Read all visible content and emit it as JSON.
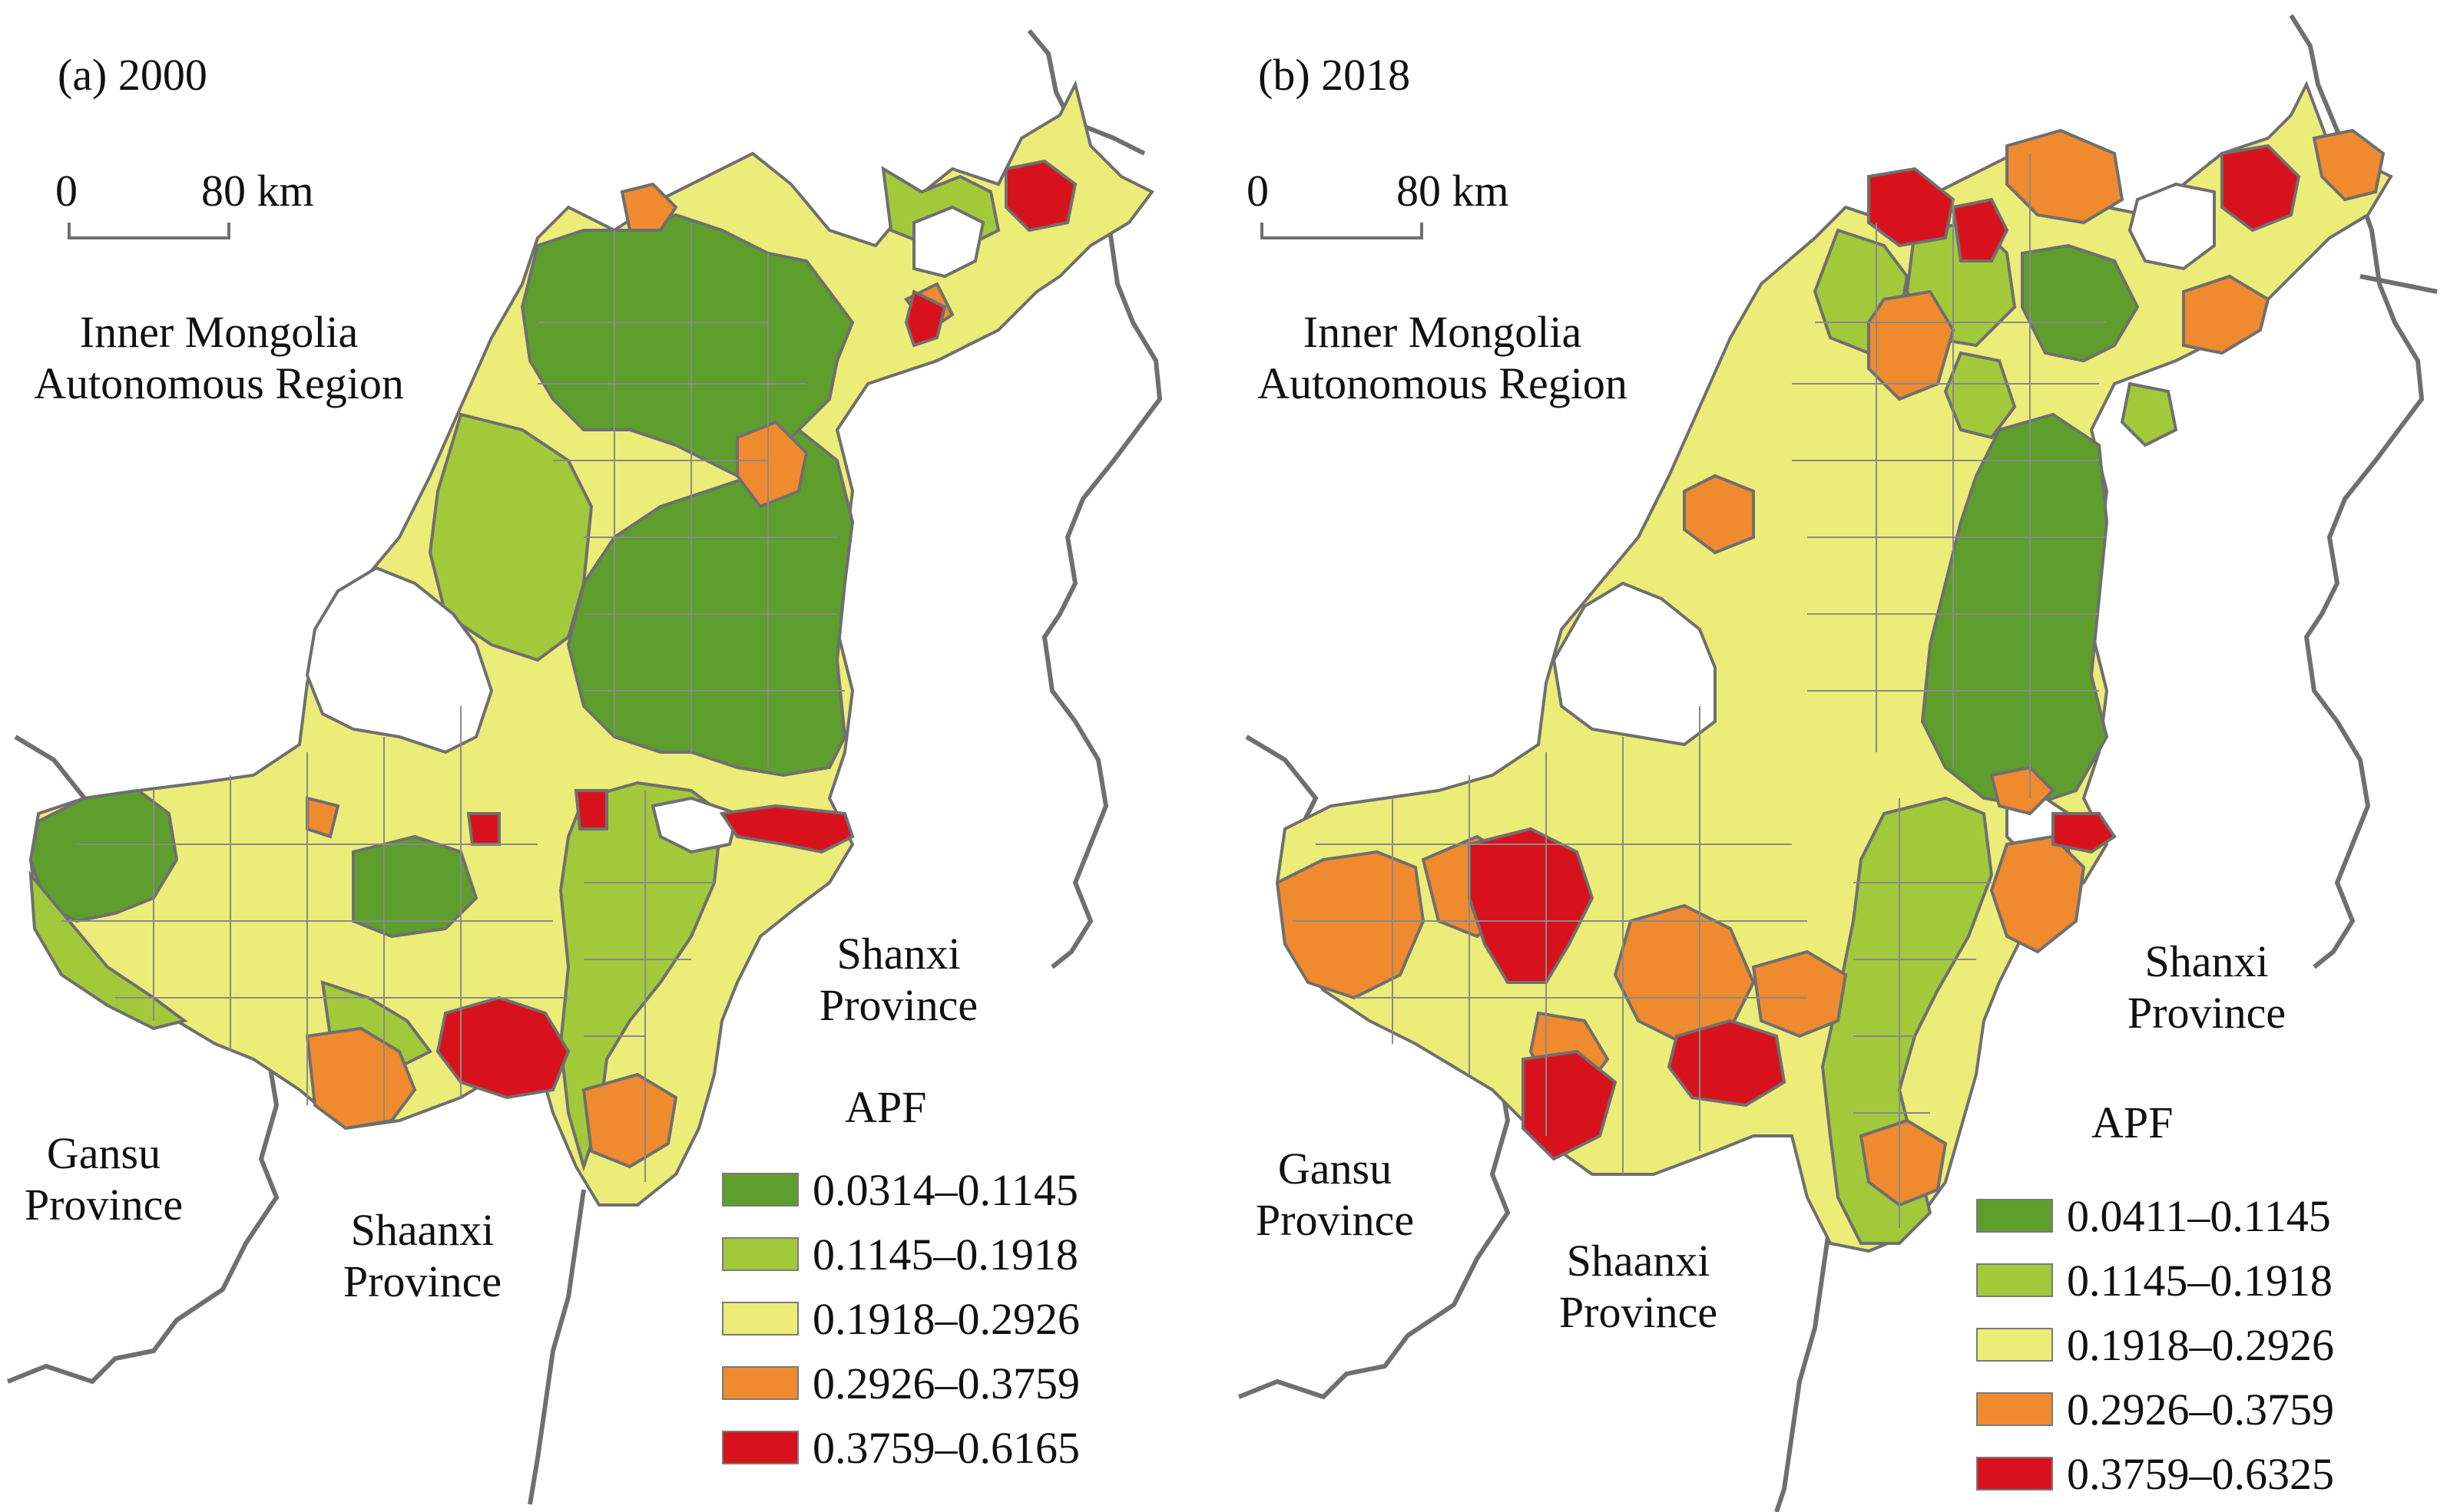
{
  "colors": {
    "dark_green": "#5e9e2c",
    "light_green": "#a2c93a",
    "yellow": "#ecec78",
    "orange": "#f08a2e",
    "red": "#d8121c",
    "nodata": "#ffffff",
    "border": "#6f6f6f"
  },
  "panels": [
    {
      "title": "(a) 2000",
      "scale": {
        "zero": "0",
        "length": "80 km"
      },
      "regions": {
        "inner_mongolia": [
          "Inner Mongolia",
          "Autonomous Region"
        ],
        "shanxi": [
          "Shanxi",
          "Province"
        ],
        "gansu": [
          "Gansu",
          "Province"
        ],
        "shaanxi": [
          "Shaanxi",
          "Province"
        ]
      },
      "legend": {
        "title": "APF",
        "items": [
          {
            "range": "0.0314–0.1145",
            "color": "#5e9e2c"
          },
          {
            "range": "0.1145–0.1918",
            "color": "#a2c93a"
          },
          {
            "range": "0.1918–0.2926",
            "color": "#ecec78"
          },
          {
            "range": "0.2926–0.3759",
            "color": "#f08a2e"
          },
          {
            "range": "0.3759–0.6165",
            "color": "#d8121c"
          }
        ]
      }
    },
    {
      "title": "(b) 2018",
      "scale": {
        "zero": "0",
        "length": "80 km"
      },
      "regions": {
        "inner_mongolia": [
          "Inner Mongolia",
          "Autonomous Region"
        ],
        "shanxi": [
          "Shanxi",
          "Province"
        ],
        "gansu": [
          "Gansu",
          "Province"
        ],
        "shaanxi": [
          "Shaanxi",
          "Province"
        ]
      },
      "legend": {
        "title": "APF",
        "items": [
          {
            "range": "0.0411–0.1145",
            "color": "#5e9e2c"
          },
          {
            "range": "0.1145–0.1918",
            "color": "#a2c93a"
          },
          {
            "range": "0.1918–0.2926",
            "color": "#ecec78"
          },
          {
            "range": "0.2926–0.3759",
            "color": "#f08a2e"
          },
          {
            "range": "0.3759–0.6325",
            "color": "#d8121c"
          }
        ]
      }
    }
  ]
}
